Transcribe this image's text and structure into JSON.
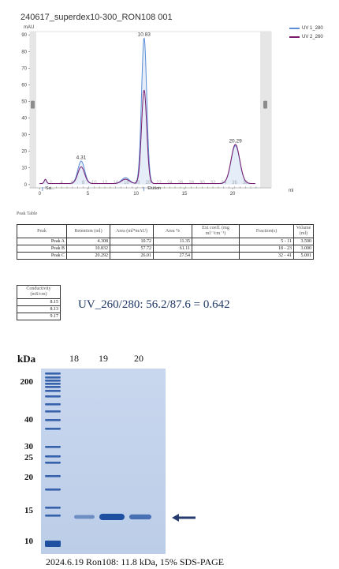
{
  "chart_data": {
    "type": "line",
    "title": "240617_superdex10-300_RON108 001",
    "ylabel": "mAU",
    "xlabel": "ml",
    "xlim": [
      -1,
      24
    ],
    "ylim": [
      -2,
      92
    ],
    "yticks": [
      0,
      10,
      20,
      30,
      40,
      50,
      60,
      70,
      80,
      90
    ],
    "xticks": [
      0,
      5,
      10,
      15,
      20
    ],
    "legend_position": "top-right",
    "series": [
      {
        "name": "UV 1_280",
        "color": "#5b8dd6",
        "peaks": [
          {
            "x": 4.31,
            "y": 13.5
          },
          {
            "x": 10.83,
            "y": 87.6
          },
          {
            "x": 20.29,
            "y": 22.8
          }
        ]
      },
      {
        "name": "UV 2_260",
        "color": "#7a1a6e",
        "peaks": [
          {
            "x": 4.31,
            "y": 10
          },
          {
            "x": 10.83,
            "y": 56.2
          },
          {
            "x": 20.29,
            "y": 23.5
          }
        ]
      }
    ],
    "peak_labels": [
      {
        "x": 4.31,
        "text": "4.31"
      },
      {
        "x": 10.83,
        "text": "10.83"
      },
      {
        "x": 20.29,
        "text": "20.29"
      }
    ],
    "fraction_labels": [
      "2",
      "4",
      "6",
      "8",
      "10",
      "12",
      "14",
      "16",
      "18",
      "20",
      "22",
      "24",
      "26",
      "28",
      "30",
      "32",
      "34",
      "36",
      "38"
    ],
    "event_labels": {
      "sample": "Sa...",
      "elution": "Elution"
    }
  },
  "peak_table": {
    "section_title": "Peak Table",
    "headers": [
      "Peak",
      "Retention (ml)",
      "Area (ml*mAU)",
      "Area %",
      "Ext coeff. (mg ml⁻¹cm⁻¹)",
      "Fraction(s)",
      "Volume (ml)"
    ],
    "rows": [
      {
        "peak": "Peak A",
        "retention": "4.308",
        "area": "10.72",
        "area_pct": "11.35",
        "ext": "",
        "fractions": "5 - 11",
        "volume": "3.500"
      },
      {
        "peak": "Peak B",
        "retention": "10.832",
        "area": "57.72",
        "area_pct": "61.11",
        "ext": "",
        "fractions": "18 - 23",
        "volume": "3.000"
      },
      {
        "peak": "Peak C",
        "retention": "20.292",
        "area": "26.01",
        "area_pct": "27.54",
        "ext": "",
        "fractions": "32 - 41",
        "volume": "5.001"
      }
    ]
  },
  "conductivity": {
    "header": "Conductivity (mS/cm)",
    "values": [
      "8.15",
      "8.13",
      "9.17"
    ]
  },
  "ratio_text": "UV_260/280: 56.2/87.6 = 0.642",
  "gel": {
    "kda_label": "kDa",
    "mw_markers": [
      "200",
      "40",
      "30",
      "25",
      "20",
      "15",
      "10"
    ],
    "lane_labels": [
      "18",
      "19",
      "20"
    ],
    "band_intensity": [
      0.35,
      1.0,
      0.65
    ],
    "caption": "2024.6.19  Ron108: 11.8 kDa, 15% SDS-PAGE",
    "colors": {
      "gel": "#c5d5ec",
      "band": "#1f4fa0",
      "arrow": "#263c6e"
    }
  }
}
